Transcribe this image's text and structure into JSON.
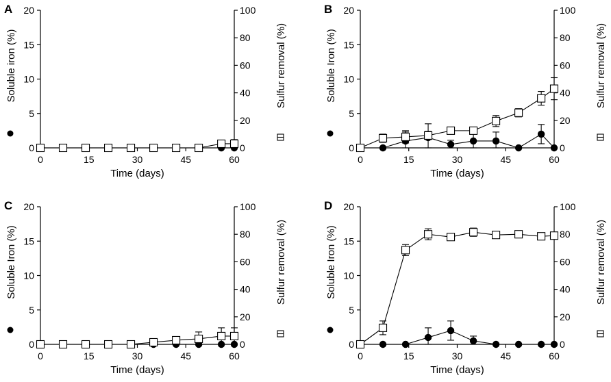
{
  "chart_data": [
    {
      "type": "line",
      "panel": "A",
      "xlabel": "Time (days)",
      "ylabel_left": "Soluble iron (%)",
      "ylabel_right": "Sulfur removal (%)",
      "xlim": [
        0,
        60
      ],
      "xticks": [
        0,
        15,
        30,
        45,
        60
      ],
      "ylim_left": [
        0,
        20
      ],
      "yticks_left": [
        0,
        5,
        10,
        15,
        20
      ],
      "ylim_right": [
        0,
        100
      ],
      "yticks_right": [
        0,
        20,
        40,
        60,
        80,
        100
      ],
      "series": [
        {
          "name": "Soluble iron",
          "marker": "filled-circle",
          "axis": "left",
          "x": [
            0,
            7,
            14,
            21,
            28,
            35,
            42,
            49,
            56,
            60
          ],
          "y": [
            0,
            0,
            0,
            0,
            0,
            0,
            0,
            0,
            0,
            0
          ],
          "err": [
            0,
            0,
            0,
            0,
            0,
            0,
            0,
            0,
            0,
            0
          ]
        },
        {
          "name": "Sulfur removal",
          "marker": "open-square",
          "axis": "right",
          "x": [
            0,
            7,
            14,
            21,
            28,
            35,
            42,
            49,
            56,
            60
          ],
          "y": [
            0,
            0,
            0,
            0,
            0,
            0,
            0,
            0,
            3,
            3
          ],
          "err": [
            0,
            0,
            0,
            0,
            0,
            0,
            0,
            0,
            1,
            3
          ]
        }
      ]
    },
    {
      "type": "line",
      "panel": "B",
      "xlabel": "Time (days)",
      "ylabel_left": "Soluble Iron (%)",
      "ylabel_right": "Sulfur removal (%)",
      "xlim": [
        0,
        60
      ],
      "xticks": [
        0,
        15,
        30,
        45,
        60
      ],
      "ylim_left": [
        0,
        20
      ],
      "yticks_left": [
        0,
        5,
        10,
        15,
        20
      ],
      "ylim_right": [
        0,
        100
      ],
      "yticks_right": [
        0,
        20,
        40,
        60,
        80,
        100
      ],
      "series": [
        {
          "name": "Soluble iron",
          "marker": "filled-circle",
          "axis": "left",
          "x": [
            0,
            7,
            14,
            21,
            28,
            35,
            42,
            49,
            56,
            60
          ],
          "y": [
            0,
            0,
            1,
            1.5,
            0.5,
            1,
            1,
            0,
            2,
            0
          ],
          "err": [
            0,
            0,
            1.3,
            2.0,
            0.6,
            1.0,
            1.3,
            0,
            1.4,
            0
          ]
        },
        {
          "name": "Sulfur removal",
          "marker": "open-square",
          "axis": "right",
          "x": [
            0,
            7,
            14,
            21,
            28,
            35,
            42,
            49,
            56,
            60
          ],
          "y": [
            0,
            7,
            8,
            9,
            12.5,
            12.5,
            19.5,
            25.5,
            36,
            43
          ],
          "err": [
            0,
            3,
            4.5,
            3,
            1,
            2,
            4,
            3,
            5,
            8
          ]
        }
      ]
    },
    {
      "type": "line",
      "panel": "C",
      "xlabel": "Time (days)",
      "ylabel_left": "Soluble Iron (%)",
      "ylabel_right": "Sulfur removal (%)",
      "xlim": [
        0,
        60
      ],
      "xticks": [
        0,
        15,
        30,
        45,
        60
      ],
      "ylim_left": [
        0,
        20
      ],
      "yticks_left": [
        0,
        5,
        10,
        15,
        20
      ],
      "ylim_right": [
        0,
        100
      ],
      "yticks_right": [
        0,
        20,
        40,
        60,
        80,
        100
      ],
      "series": [
        {
          "name": "Soluble iron",
          "marker": "filled-circle",
          "axis": "left",
          "x": [
            0,
            7,
            14,
            21,
            28,
            35,
            42,
            49,
            56,
            60
          ],
          "y": [
            0,
            0,
            0,
            0,
            0,
            0,
            0,
            0,
            0,
            0
          ],
          "err": [
            0,
            0,
            0,
            0,
            0,
            0,
            0,
            0,
            0,
            0
          ]
        },
        {
          "name": "Sulfur removal",
          "marker": "open-square",
          "axis": "right",
          "x": [
            0,
            7,
            14,
            21,
            28,
            35,
            42,
            49,
            56,
            60
          ],
          "y": [
            0,
            0,
            0,
            0,
            0,
            1.5,
            3,
            4,
            6,
            6
          ],
          "err": [
            0,
            0,
            0,
            0,
            0,
            1,
            2,
            5,
            6,
            6
          ]
        }
      ]
    },
    {
      "type": "line",
      "panel": "D",
      "xlabel": "Time (days)",
      "ylabel_left": "Soluble Iron (%)",
      "ylabel_right": "Sulfur removal (%)",
      "xlim": [
        0,
        60
      ],
      "xticks": [
        0,
        15,
        30,
        45,
        60
      ],
      "ylim_left": [
        0,
        20
      ],
      "yticks_left": [
        0,
        5,
        10,
        15,
        20
      ],
      "ylim_right": [
        0,
        100
      ],
      "yticks_right": [
        0,
        20,
        40,
        60,
        80,
        100
      ],
      "series": [
        {
          "name": "Soluble iron",
          "marker": "filled-circle",
          "axis": "left",
          "x": [
            0,
            7,
            14,
            21,
            28,
            35,
            42,
            49,
            56,
            60
          ],
          "y": [
            0,
            0,
            0,
            1,
            2,
            0.5,
            0,
            0,
            0,
            0
          ],
          "err": [
            0,
            0,
            0,
            1.4,
            1.4,
            0.7,
            0,
            0,
            0,
            0
          ]
        },
        {
          "name": "Sulfur removal",
          "marker": "open-square",
          "axis": "right",
          "x": [
            0,
            7,
            14,
            21,
            28,
            35,
            42,
            49,
            56,
            60
          ],
          "y": [
            0,
            12,
            68.5,
            80,
            78,
            81.5,
            79.5,
            80,
            78.5,
            79
          ],
          "err": [
            0,
            5,
            4,
            4,
            1,
            3,
            1,
            1,
            1,
            1
          ]
        }
      ]
    }
  ]
}
